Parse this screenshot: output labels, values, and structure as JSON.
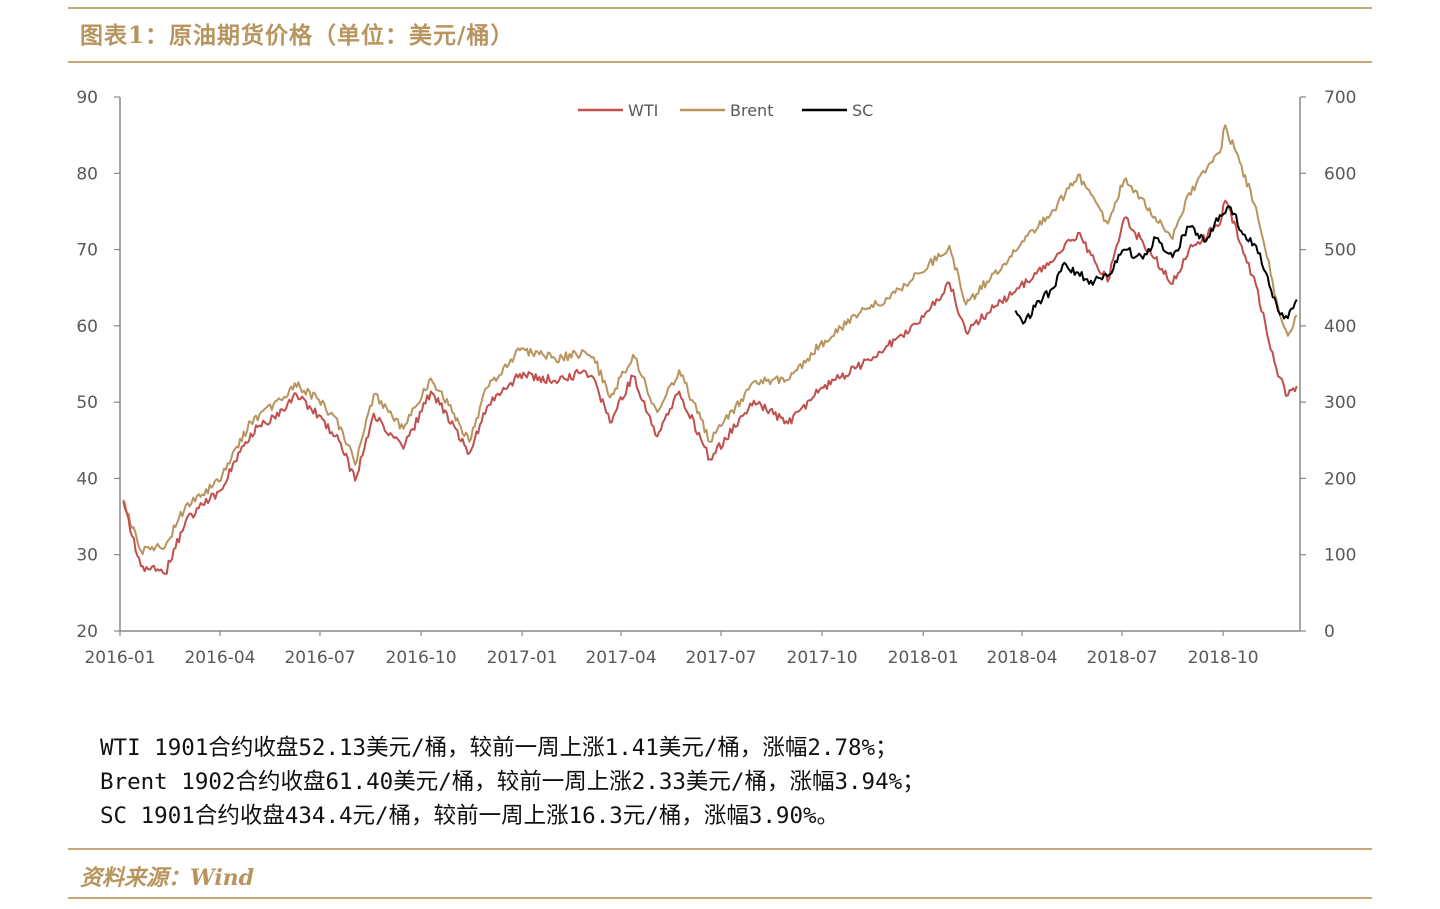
{
  "figure": {
    "title": "图表1：原油期货价格（单位：美元/桶）",
    "source": "资料来源：Wind"
  },
  "notes": [
    "WTI 1901合约收盘52.13美元/桶，较前一周上涨1.41美元/桶，涨幅2.78%；",
    "Brent 1902合约收盘61.40美元/桶，较前一周上涨2.33美元/桶，涨幅3.94%；",
    "SC 1901合约收盘434.4元/桶，较前一周上涨16.3元/桶，涨幅3.90%。"
  ],
  "chart_data": {
    "type": "line",
    "title": "",
    "xlabel": "",
    "ylabel": "",
    "x_ticks": [
      "2016-01",
      "2016-04",
      "2016-07",
      "2016-10",
      "2017-01",
      "2017-04",
      "2017-07",
      "2017-10",
      "2018-01",
      "2018-04",
      "2018-07",
      "2018-10"
    ],
    "y_left": {
      "min": 20,
      "max": 90,
      "ticks": [
        20,
        30,
        40,
        50,
        60,
        70,
        80,
        90
      ]
    },
    "y_right": {
      "min": 0,
      "max": 700,
      "ticks": [
        0,
        100,
        200,
        300,
        400,
        500,
        600,
        700
      ]
    },
    "legend_position": "top-center",
    "grid": false,
    "series": [
      {
        "name": "WTI",
        "axis": "left",
        "color": "#c0504d",
        "x": [
          "2016-01-04",
          "2016-01-20",
          "2016-02-11",
          "2016-03-01",
          "2016-03-31",
          "2016-04-29",
          "2016-05-31",
          "2016-06-08",
          "2016-06-30",
          "2016-07-20",
          "2016-08-02",
          "2016-08-19",
          "2016-09-15",
          "2016-10-10",
          "2016-10-31",
          "2016-11-14",
          "2016-11-30",
          "2016-12-30",
          "2017-01-31",
          "2017-02-28",
          "2017-03-07",
          "2017-03-22",
          "2017-04-12",
          "2017-05-04",
          "2017-05-24",
          "2017-06-21",
          "2017-07-31",
          "2017-08-31",
          "2017-09-29",
          "2017-10-31",
          "2017-11-30",
          "2017-12-29",
          "2018-01-25",
          "2018-02-09",
          "2018-02-28",
          "2018-03-29",
          "2018-04-30",
          "2018-05-22",
          "2018-06-18",
          "2018-07-03",
          "2018-07-31",
          "2018-08-16",
          "2018-08-31",
          "2018-09-28",
          "2018-10-03",
          "2018-10-31",
          "2018-11-20",
          "2018-11-29",
          "2018-12-07"
        ],
        "values": [
          37.0,
          28.5,
          27.5,
          34.5,
          38.3,
          45.9,
          49.1,
          51.2,
          48.3,
          44.6,
          39.7,
          48.5,
          43.9,
          51.4,
          46.9,
          43.3,
          49.4,
          53.7,
          52.8,
          54.0,
          53.2,
          47.3,
          53.4,
          45.5,
          51.4,
          42.5,
          50.2,
          47.2,
          51.7,
          54.4,
          57.4,
          60.4,
          65.6,
          59.2,
          61.6,
          64.9,
          68.6,
          72.2,
          65.8,
          74.1,
          68.8,
          65.5,
          70.0,
          73.3,
          76.4,
          65.3,
          53.4,
          50.9,
          52.1
        ]
      },
      {
        "name": "Brent",
        "axis": "left",
        "color": "#b8955f",
        "x": [
          "2016-01-04",
          "2016-01-20",
          "2016-02-11",
          "2016-03-01",
          "2016-03-31",
          "2016-04-29",
          "2016-05-31",
          "2016-06-08",
          "2016-06-30",
          "2016-07-20",
          "2016-08-02",
          "2016-08-19",
          "2016-09-15",
          "2016-10-10",
          "2016-10-31",
          "2016-11-14",
          "2016-11-30",
          "2016-12-30",
          "2017-01-31",
          "2017-02-28",
          "2017-03-07",
          "2017-03-22",
          "2017-04-12",
          "2017-05-04",
          "2017-05-24",
          "2017-06-21",
          "2017-07-31",
          "2017-08-31",
          "2017-09-29",
          "2017-10-31",
          "2017-11-30",
          "2017-12-29",
          "2018-01-25",
          "2018-02-09",
          "2018-02-28",
          "2018-03-29",
          "2018-04-30",
          "2018-05-22",
          "2018-06-18",
          "2018-07-03",
          "2018-07-31",
          "2018-08-16",
          "2018-08-31",
          "2018-09-28",
          "2018-10-03",
          "2018-10-31",
          "2018-11-20",
          "2018-11-29",
          "2018-12-07"
        ],
        "values": [
          37.2,
          30.5,
          31.0,
          36.5,
          39.6,
          47.4,
          50.6,
          52.5,
          50.3,
          46.7,
          41.8,
          51.0,
          46.5,
          53.1,
          48.5,
          44.8,
          51.9,
          56.8,
          55.7,
          56.5,
          55.9,
          50.6,
          56.2,
          48.7,
          54.2,
          44.8,
          52.7,
          52.9,
          57.5,
          61.4,
          63.6,
          66.9,
          70.5,
          62.8,
          65.8,
          70.3,
          75.2,
          79.8,
          73.4,
          79.1,
          74.3,
          71.4,
          77.4,
          82.7,
          86.3,
          75.5,
          62.5,
          58.7,
          61.4
        ]
      },
      {
        "name": "SC",
        "axis": "right",
        "color": "#000000",
        "x": [
          "2018-03-26",
          "2018-04-02",
          "2018-04-13",
          "2018-04-30",
          "2018-05-08",
          "2018-05-22",
          "2018-06-01",
          "2018-06-18",
          "2018-07-03",
          "2018-07-20",
          "2018-08-01",
          "2018-08-16",
          "2018-08-31",
          "2018-09-14",
          "2018-09-28",
          "2018-10-08",
          "2018-10-19",
          "2018-10-31",
          "2018-11-09",
          "2018-11-20",
          "2018-11-29",
          "2018-12-07"
        ],
        "values": [
          420.0,
          403.0,
          425.0,
          450.0,
          480.0,
          470.0,
          455.0,
          465.0,
          500.0,
          488.0,
          515.0,
          490.0,
          530.0,
          510.0,
          545.0,
          555.0,
          520.0,
          505.0,
          470.0,
          420.0,
          410.0,
          434.4
        ]
      }
    ]
  }
}
